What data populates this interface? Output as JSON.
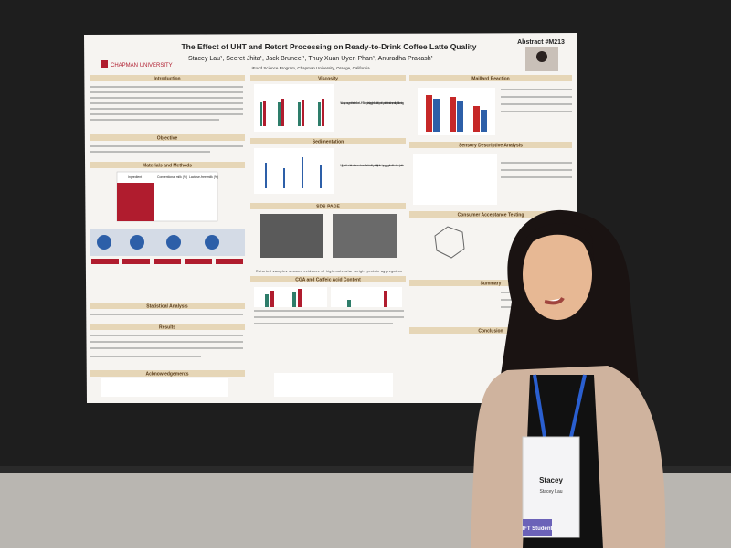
{
  "poster": {
    "title": "The Effect of UHT and Retort Processing on Ready-to-Drink Coffee Latte Quality",
    "authors": "Stacey Lau¹, Seeret Jhita¹, Jack Bruneel¹, Thuy Xuan Uyen Phan¹, Anuradha Prakash¹",
    "affiliation": "¹Food Science Program, Chapman University, Orange, California",
    "abstract": "Abstract #M213",
    "logo": "CHAPMAN UNIVERSITY",
    "left_sections": [
      "Introduction",
      "Objective",
      "Materials and Methods",
      "Statistical Analysis",
      "Results",
      "Acknowledgements"
    ],
    "middle_sections": [
      "Viscosity",
      "Sedimentation",
      "SDS-PAGE",
      "CGA and Caffeic Acid Content"
    ],
    "right_sections": [
      "Maillard Reaction",
      "Sensory Descriptive Analysis",
      "Consumer Acceptance Testing",
      "Summary",
      "Conclusion"
    ],
    "table_header": [
      "Ingredient",
      "Conventional milk (%)",
      "Lactose-free milk (%)"
    ],
    "notes": [
      "Viscosity was greater in retorted than UHT samples, largely attributable to protein-protein interactions, resulting in thickening.",
      "High sedimentation rates were observed in retorted latte, potentially driven by aggregation of denatured protein.",
      "Retorted samples showed evidence of high molecular weight protein aggregation"
    ]
  },
  "badge": {
    "name": "Stacey",
    "full_name": "Stacey Lau",
    "tag": "IFT Student"
  }
}
